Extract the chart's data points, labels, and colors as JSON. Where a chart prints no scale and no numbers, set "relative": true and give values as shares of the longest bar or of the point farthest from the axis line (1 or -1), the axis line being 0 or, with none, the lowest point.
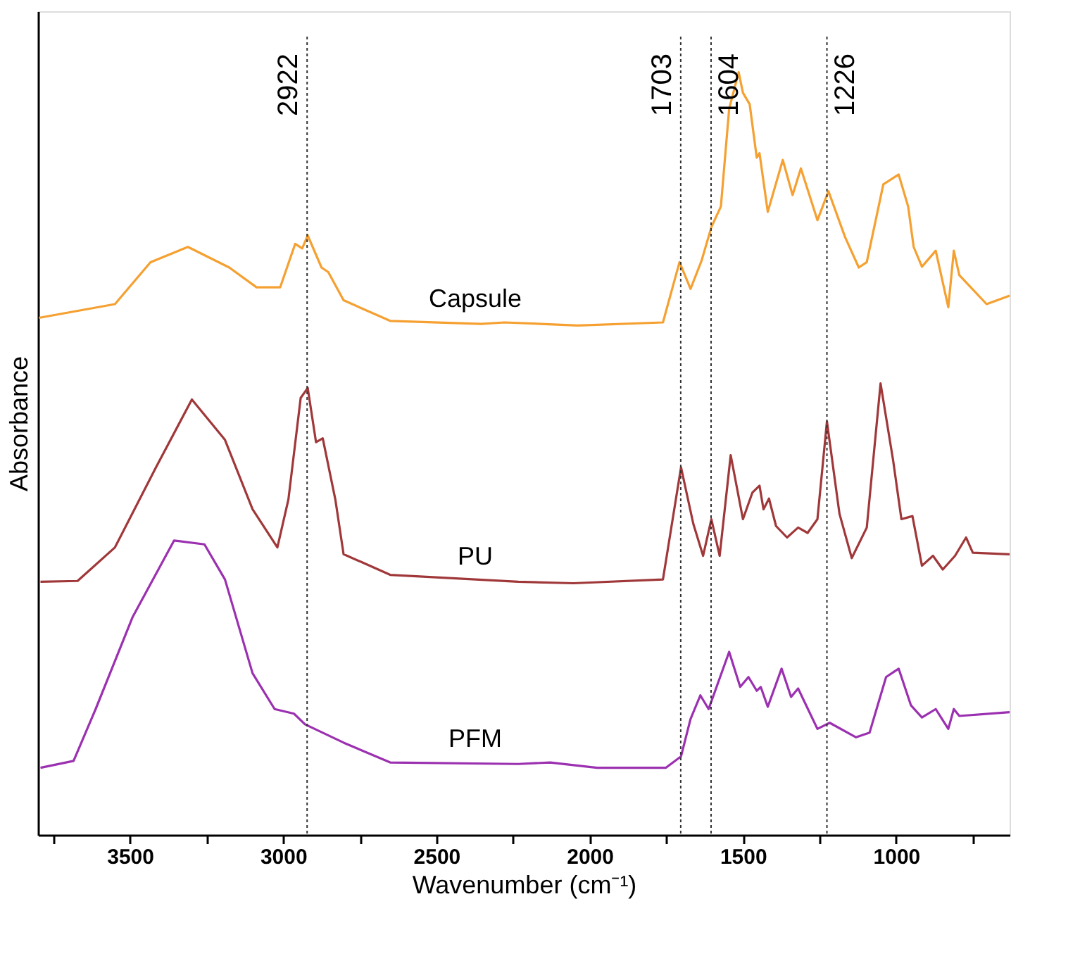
{
  "chart_data": {
    "type": "line",
    "relative": true,
    "xlabel": "Wavenumber (cm⁻¹)",
    "ylabel": "Absorbance",
    "xlim": [
      3800,
      630
    ],
    "xticks": [
      {
        "value": 3750,
        "label": null
      },
      3500,
      {
        "value": 3250,
        "label": null
      },
      3000,
      {
        "value": 2750,
        "label": null
      },
      2500,
      {
        "value": 2250,
        "label": null
      },
      2000,
      {
        "value": 1750,
        "label": null
      },
      1500,
      {
        "value": 1250,
        "label": null
      },
      1000,
      {
        "value": 750,
        "label": null
      }
    ],
    "tick_labels": "x",
    "grid": false,
    "legend": false,
    "marker": "none",
    "line_style": "solid",
    "ref_lines": [
      {
        "axis": "x",
        "value": 2922,
        "label": "2922",
        "line_style": "dotted",
        "color": "#333333"
      },
      {
        "axis": "x",
        "value": 1703,
        "label": "1703",
        "line_style": "dotted",
        "color": "#333333"
      },
      {
        "axis": "x",
        "value": 1604,
        "label": "1604",
        "line_style": "dotted",
        "color": "#333333"
      },
      {
        "axis": "x",
        "value": 1226,
        "label": "1226",
        "line_style": "dotted",
        "color": "#333333"
      }
    ],
    "series": [
      {
        "name": "Capsule",
        "color": "#f5a030",
        "x": [
          3797,
          3549,
          3433,
          3311,
          3176,
          3087,
          3010,
          2961,
          2938,
          2920,
          2875,
          2853,
          2803,
          2651,
          2354,
          2278,
          2039,
          1761,
          1707,
          1671,
          1635,
          1603,
          1572,
          1545,
          1514,
          1500,
          1478,
          1455,
          1446,
          1419,
          1370,
          1338,
          1311,
          1257,
          1221,
          1167,
          1122,
          1096,
          1042,
          992,
          961,
          943,
          916,
          871,
          830,
          812,
          794,
          705,
          630
        ],
        "values": [
          0.678,
          0.696,
          0.751,
          0.771,
          0.744,
          0.718,
          0.718,
          0.775,
          0.769,
          0.786,
          0.744,
          0.738,
          0.701,
          0.674,
          0.67,
          0.672,
          0.668,
          0.672,
          0.751,
          0.716,
          0.753,
          0.797,
          0.824,
          0.952,
          1.0,
          0.973,
          0.958,
          0.888,
          0.894,
          0.817,
          0.885,
          0.839,
          0.874,
          0.806,
          0.844,
          0.784,
          0.744,
          0.751,
          0.853,
          0.866,
          0.824,
          0.771,
          0.745,
          0.766,
          0.692,
          0.766,
          0.734,
          0.696,
          0.707
        ]
      },
      {
        "name": "PU",
        "color": "#a0383a",
        "x": [
          3792,
          3671,
          3549,
          3415,
          3298,
          3190,
          3100,
          3019,
          2983,
          2943,
          2920,
          2893,
          2871,
          2830,
          2803,
          2740,
          2651,
          2233,
          2053,
          1761,
          1702,
          1662,
          1630,
          1603,
          1576,
          1540,
          1500,
          1469,
          1446,
          1433,
          1415,
          1392,
          1356,
          1320,
          1289,
          1257,
          1226,
          1185,
          1145,
          1096,
          1051,
          1010,
          983,
          947,
          916,
          880,
          848,
          808,
          772,
          750,
          630
        ],
        "values": [
          0.332,
          0.333,
          0.377,
          0.482,
          0.571,
          0.518,
          0.427,
          0.377,
          0.44,
          0.573,
          0.586,
          0.515,
          0.52,
          0.44,
          0.368,
          0.357,
          0.341,
          0.332,
          0.33,
          0.335,
          0.482,
          0.408,
          0.366,
          0.414,
          0.366,
          0.498,
          0.414,
          0.449,
          0.458,
          0.427,
          0.441,
          0.405,
          0.39,
          0.403,
          0.396,
          0.414,
          0.542,
          0.421,
          0.363,
          0.403,
          0.592,
          0.491,
          0.414,
          0.418,
          0.353,
          0.366,
          0.348,
          0.366,
          0.39,
          0.37,
          0.368
        ]
      },
      {
        "name": "PFM",
        "color": "#9b30b0",
        "x": [
          3792,
          3684,
          3612,
          3491,
          3356,
          3257,
          3190,
          3100,
          3028,
          2965,
          2929,
          2803,
          2651,
          2233,
          2129,
          1976,
          1752,
          1702,
          1671,
          1639,
          1612,
          1545,
          1509,
          1482,
          1455,
          1442,
          1419,
          1374,
          1343,
          1320,
          1257,
          1217,
          1131,
          1087,
          1033,
          992,
          952,
          916,
          871,
          830,
          812,
          794,
          630
        ],
        "values": [
          0.088,
          0.097,
          0.165,
          0.286,
          0.386,
          0.381,
          0.335,
          0.212,
          0.165,
          0.159,
          0.145,
          0.121,
          0.095,
          0.093,
          0.095,
          0.088,
          0.088,
          0.103,
          0.152,
          0.183,
          0.165,
          0.24,
          0.194,
          0.207,
          0.189,
          0.194,
          0.168,
          0.218,
          0.181,
          0.192,
          0.139,
          0.147,
          0.128,
          0.134,
          0.207,
          0.218,
          0.17,
          0.154,
          0.165,
          0.139,
          0.165,
          0.156,
          0.161
        ]
      }
    ]
  }
}
